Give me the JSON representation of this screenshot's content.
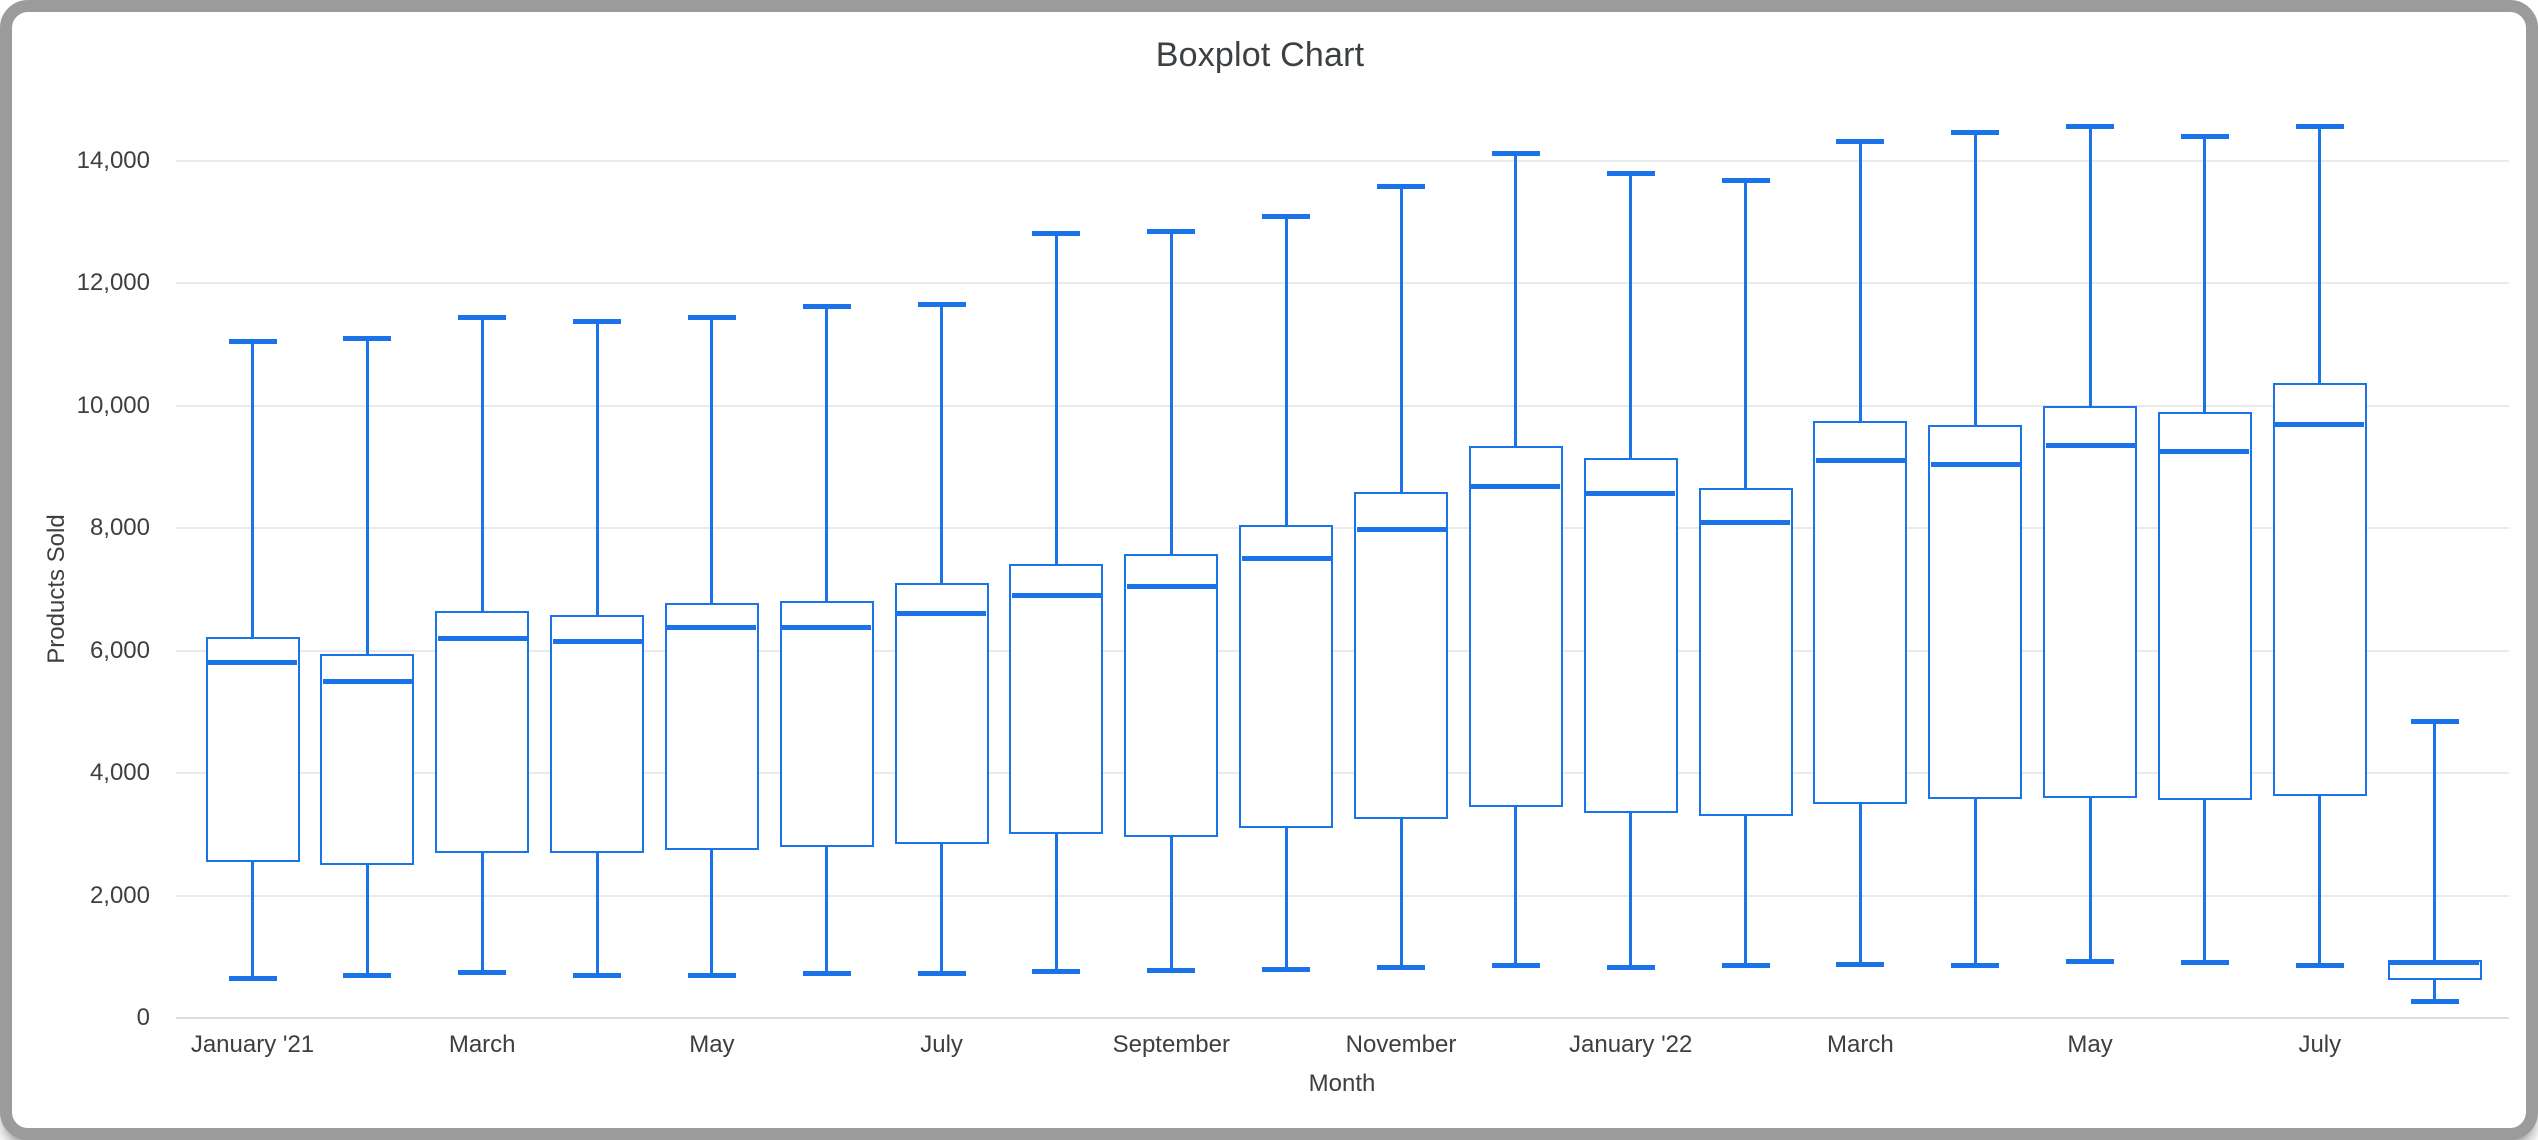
{
  "window": {
    "frame_color": "#9b9b9b",
    "background_color": "#ffffff"
  },
  "colors": {
    "series_blue": "#1a73e8",
    "gridline": "#e9eaec",
    "baseline": "#dadce0",
    "text": "#3c4043"
  },
  "chart_data": {
    "type": "boxplot",
    "title": "Boxplot Chart",
    "xlabel": "Month",
    "ylabel": "Products Sold",
    "ylim": [
      0,
      14000
    ],
    "yticks": [
      0,
      2000,
      4000,
      6000,
      8000,
      10000,
      12000,
      14000
    ],
    "ytick_labels": [
      "0",
      "2,000",
      "4,000",
      "6,000",
      "8,000",
      "10,000",
      "12,000",
      "14,000"
    ],
    "grid": true,
    "legend": "none",
    "categories": [
      "January '21",
      "",
      "March",
      "",
      "May",
      "",
      "July",
      "",
      "September",
      "",
      "November",
      "",
      "January '22",
      "",
      "March",
      "",
      "May",
      "",
      "July",
      ""
    ],
    "boxes": [
      {
        "label": "January '21",
        "min": 650,
        "q1": 2550,
        "median": 5800,
        "q3": 6230,
        "max": 11050
      },
      {
        "label": "",
        "min": 700,
        "q1": 2500,
        "median": 5500,
        "q3": 5950,
        "max": 11100
      },
      {
        "label": "March",
        "min": 750,
        "q1": 2700,
        "median": 6200,
        "q3": 6650,
        "max": 11450
      },
      {
        "label": "",
        "min": 700,
        "q1": 2700,
        "median": 6150,
        "q3": 6580,
        "max": 11380
      },
      {
        "label": "May",
        "min": 700,
        "q1": 2750,
        "median": 6380,
        "q3": 6780,
        "max": 11450
      },
      {
        "label": "",
        "min": 730,
        "q1": 2800,
        "median": 6380,
        "q3": 6820,
        "max": 11620
      },
      {
        "label": "July",
        "min": 720,
        "q1": 2850,
        "median": 6600,
        "q3": 7100,
        "max": 11650
      },
      {
        "label": "",
        "min": 760,
        "q1": 3000,
        "median": 6900,
        "q3": 7420,
        "max": 12820
      },
      {
        "label": "September",
        "min": 780,
        "q1": 2950,
        "median": 7050,
        "q3": 7580,
        "max": 12850
      },
      {
        "label": "",
        "min": 790,
        "q1": 3100,
        "median": 7500,
        "q3": 8050,
        "max": 13100
      },
      {
        "label": "November",
        "min": 830,
        "q1": 3250,
        "median": 7980,
        "q3": 8600,
        "max": 13580
      },
      {
        "label": "",
        "min": 850,
        "q1": 3450,
        "median": 8680,
        "q3": 9350,
        "max": 14120
      },
      {
        "label": "January '22",
        "min": 820,
        "q1": 3350,
        "median": 8570,
        "q3": 9150,
        "max": 13800
      },
      {
        "label": "",
        "min": 850,
        "q1": 3300,
        "median": 8100,
        "q3": 8650,
        "max": 13680
      },
      {
        "label": "March",
        "min": 880,
        "q1": 3500,
        "median": 9100,
        "q3": 9750,
        "max": 14320
      },
      {
        "label": "",
        "min": 850,
        "q1": 3570,
        "median": 9050,
        "q3": 9680,
        "max": 14470
      },
      {
        "label": "May",
        "min": 930,
        "q1": 3600,
        "median": 9350,
        "q3": 10000,
        "max": 14560
      },
      {
        "label": "",
        "min": 900,
        "q1": 3560,
        "median": 9250,
        "q3": 9900,
        "max": 14400
      },
      {
        "label": "July",
        "min": 865,
        "q1": 3620,
        "median": 9700,
        "q3": 10380,
        "max": 14570
      },
      {
        "label": "",
        "min": 270,
        "q1": 620,
        "median": 900,
        "q3": 950,
        "max": 4850
      }
    ]
  }
}
